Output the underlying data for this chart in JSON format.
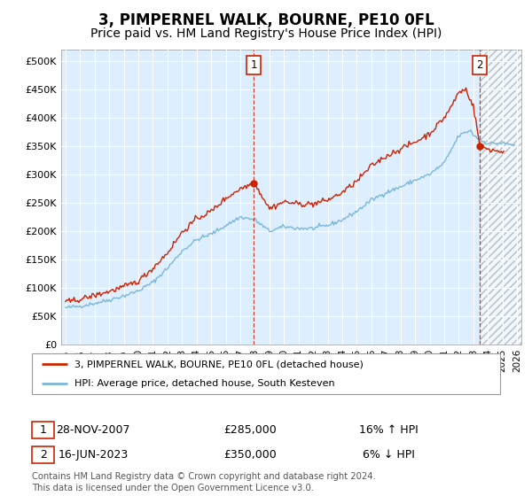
{
  "title": "3, PIMPERNEL WALK, BOURNE, PE10 0FL",
  "subtitle": "Price paid vs. HM Land Registry's House Price Index (HPI)",
  "ylabel_ticks": [
    "£0",
    "£50K",
    "£100K",
    "£150K",
    "£200K",
    "£250K",
    "£300K",
    "£350K",
    "£400K",
    "£450K",
    "£500K"
  ],
  "ytick_values": [
    0,
    50000,
    100000,
    150000,
    200000,
    250000,
    300000,
    350000,
    400000,
    450000,
    500000
  ],
  "ylim": [
    0,
    520000
  ],
  "xlim_start": 1994.7,
  "xlim_end": 2026.3,
  "hpi_color": "#7ab8d9",
  "price_color": "#cc2200",
  "sale1_date": 2007.91,
  "sale1_price": 285000,
  "sale2_date": 2023.46,
  "sale2_price": 350000,
  "sale1_label": "1",
  "sale2_label": "2",
  "legend_line1": "3, PIMPERNEL WALK, BOURNE, PE10 0FL (detached house)",
  "legend_line2": "HPI: Average price, detached house, South Kesteven",
  "table_row1_num": "1",
  "table_row1_date": "28-NOV-2007",
  "table_row1_price": "£285,000",
  "table_row1_hpi": "16% ↑ HPI",
  "table_row2_num": "2",
  "table_row2_date": "16-JUN-2023",
  "table_row2_price": "£350,000",
  "table_row2_hpi": "6% ↓ HPI",
  "footnote": "Contains HM Land Registry data © Crown copyright and database right 2024.\nThis data is licensed under the Open Government Licence v3.0.",
  "plot_bg_color": "#ddeeff",
  "grid_color": "#ffffff",
  "title_fontsize": 12,
  "subtitle_fontsize": 10,
  "hpi_waypoints_x": [
    1995.0,
    1996.0,
    1997.0,
    1998.0,
    1999.0,
    2000.0,
    2001.0,
    2002.0,
    2003.0,
    2004.0,
    2005.0,
    2006.0,
    2007.0,
    2008.0,
    2009.0,
    2010.0,
    2011.0,
    2012.0,
    2013.0,
    2014.0,
    2015.0,
    2016.0,
    2017.0,
    2018.0,
    2019.0,
    2020.0,
    2021.0,
    2022.0,
    2022.8,
    2023.0,
    2023.5,
    2024.0,
    2024.5,
    2025.0,
    2025.8
  ],
  "hpi_waypoints_y": [
    65000,
    68000,
    73000,
    79000,
    86000,
    95000,
    110000,
    135000,
    165000,
    185000,
    195000,
    210000,
    225000,
    220000,
    200000,
    208000,
    205000,
    205000,
    210000,
    220000,
    235000,
    255000,
    268000,
    278000,
    290000,
    300000,
    320000,
    368000,
    378000,
    370000,
    360000,
    355000,
    355000,
    355000,
    352000
  ],
  "price_waypoints_x": [
    1995.0,
    1996.0,
    1997.0,
    1998.0,
    1999.0,
    2000.0,
    2001.0,
    2002.0,
    2003.0,
    2004.0,
    2005.0,
    2006.0,
    2007.0,
    2007.91,
    2008.2,
    2009.0,
    2010.0,
    2011.0,
    2012.0,
    2013.0,
    2014.0,
    2015.0,
    2016.0,
    2017.0,
    2018.0,
    2019.0,
    2020.0,
    2021.0,
    2021.5,
    2022.0,
    2022.5,
    2023.0,
    2023.46,
    2024.0,
    2024.5,
    2025.0
  ],
  "price_waypoints_y": [
    75000,
    80000,
    87000,
    94000,
    102000,
    112000,
    135000,
    162000,
    198000,
    222000,
    235000,
    258000,
    275000,
    285000,
    275000,
    240000,
    252000,
    248000,
    248000,
    255000,
    268000,
    288000,
    315000,
    332000,
    345000,
    357000,
    372000,
    400000,
    420000,
    445000,
    450000,
    420000,
    350000,
    345000,
    342000,
    340000
  ]
}
